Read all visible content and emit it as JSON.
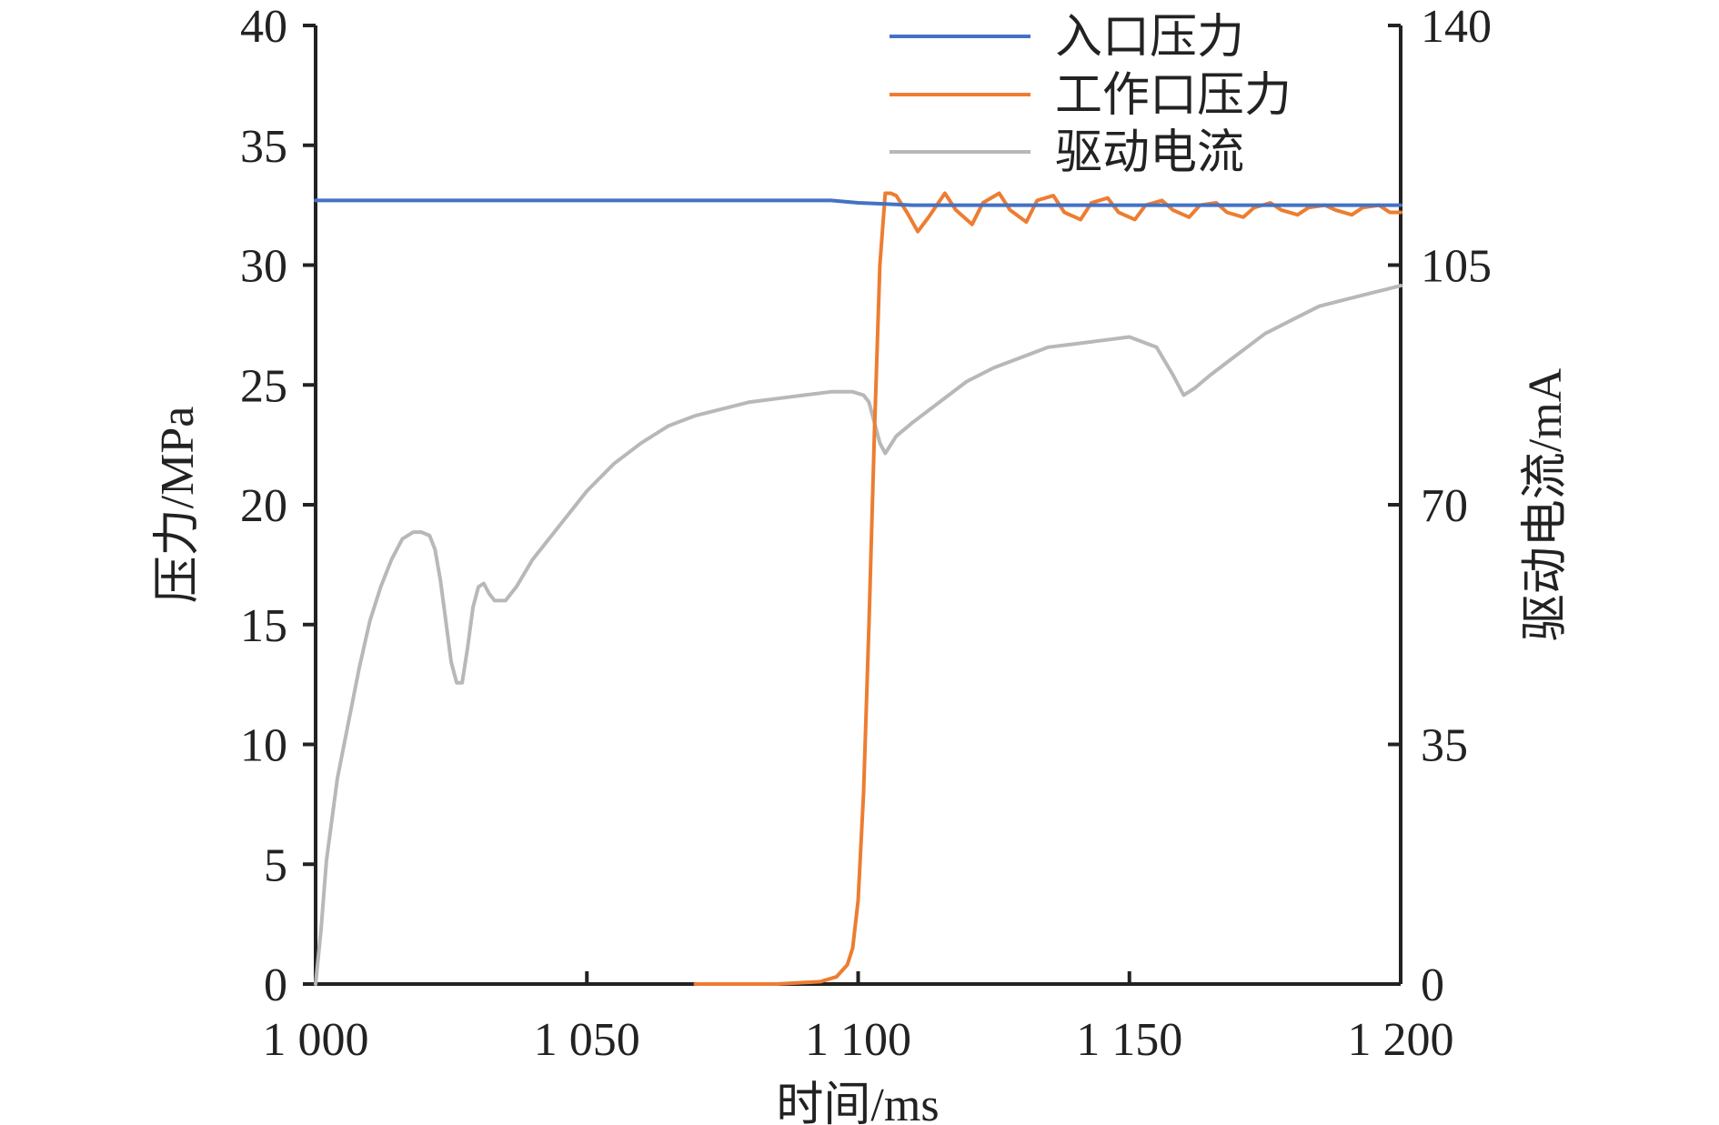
{
  "chart_data": {
    "type": "line",
    "x_axis": {
      "title": "时间/ms",
      "range": [
        1000,
        1200
      ],
      "ticks": [
        1000,
        1050,
        1100,
        1150,
        1200
      ],
      "tick_labels": [
        "1 000",
        "1 050",
        "1 100",
        "1 150",
        "1 200"
      ]
    },
    "y_axis_left": {
      "title": "压力/MPa",
      "range": [
        0,
        40
      ],
      "ticks": [
        0,
        5,
        10,
        15,
        20,
        25,
        30,
        35,
        40
      ],
      "tick_labels": [
        "0",
        "5",
        "10",
        "15",
        "20",
        "25",
        "30",
        "35",
        "40"
      ]
    },
    "y_axis_right": {
      "title": "驱动电流/mA",
      "range": [
        0,
        140
      ],
      "ticks": [
        0,
        35,
        70,
        105,
        140
      ],
      "tick_labels": [
        "0",
        "35",
        "70",
        "105",
        "140"
      ]
    },
    "grid": false,
    "legend_position": "top-right",
    "series": [
      {
        "name": "入口压力",
        "axis": "left",
        "color": "#4472c4",
        "x": [
          1000,
          1020,
          1040,
          1060,
          1080,
          1095,
          1100,
          1105,
          1110,
          1130,
          1150,
          1170,
          1190,
          1200
        ],
        "y": [
          32.7,
          32.7,
          32.7,
          32.7,
          32.7,
          32.7,
          32.6,
          32.55,
          32.5,
          32.5,
          32.5,
          32.5,
          32.5,
          32.5
        ]
      },
      {
        "name": "工作口压力",
        "axis": "left",
        "color": "#ed7d31",
        "x": [
          1070,
          1085,
          1093,
          1096,
          1098,
          1099,
          1100,
          1101,
          1102,
          1103,
          1104,
          1105,
          1106,
          1107,
          1109,
          1111,
          1113,
          1116,
          1118,
          1121,
          1123,
          1126,
          1128,
          1131,
          1133,
          1136,
          1138,
          1141,
          1143,
          1146,
          1148,
          1151,
          1153,
          1156,
          1158,
          1161,
          1163,
          1166,
          1168,
          1171,
          1173,
          1176,
          1178,
          1181,
          1183,
          1186,
          1188,
          1191,
          1193,
          1196,
          1198,
          1200
        ],
        "y": [
          0,
          0,
          0.1,
          0.3,
          0.8,
          1.5,
          3.5,
          8,
          15,
          23,
          30,
          33,
          33,
          32.9,
          32.2,
          31.4,
          32,
          33,
          32.3,
          31.7,
          32.6,
          33,
          32.3,
          31.8,
          32.7,
          32.9,
          32.2,
          31.9,
          32.6,
          32.8,
          32.2,
          31.9,
          32.5,
          32.7,
          32.3,
          32,
          32.5,
          32.6,
          32.2,
          32,
          32.4,
          32.6,
          32.3,
          32.1,
          32.4,
          32.5,
          32.3,
          32.1,
          32.4,
          32.5,
          32.2,
          32.2
        ]
      },
      {
        "name": "驱动电流",
        "axis": "right",
        "color": "#b8b8b8",
        "x": [
          1000,
          1001,
          1002,
          1004,
          1006,
          1008,
          1010,
          1012,
          1014,
          1016,
          1018,
          1019.5,
          1021,
          1022,
          1023,
          1024,
          1025,
          1026,
          1027,
          1028,
          1029,
          1030,
          1031,
          1032,
          1033,
          1035,
          1037,
          1040,
          1045,
          1050,
          1055,
          1060,
          1065,
          1070,
          1075,
          1080,
          1085,
          1090,
          1095,
          1099,
          1101,
          1102,
          1103,
          1104,
          1105,
          1107,
          1110,
          1115,
          1120,
          1125,
          1130,
          1135,
          1140,
          1145,
          1150,
          1155,
          1158,
          1160,
          1162,
          1165,
          1170,
          1175,
          1180,
          1185,
          1190,
          1195,
          1200
        ],
        "y": [
          0,
          8,
          18,
          30,
          38,
          46,
          53,
          58,
          62,
          65,
          66,
          66,
          65.5,
          63.5,
          59,
          53,
          47,
          44,
          44,
          49,
          55,
          58,
          58.5,
          57,
          56,
          56,
          58,
          62,
          67,
          72,
          76,
          79,
          81.5,
          83,
          84,
          85,
          85.5,
          86,
          86.5,
          86.5,
          86,
          85,
          82,
          79,
          77.5,
          80,
          82,
          85,
          88,
          90,
          91.5,
          93,
          93.5,
          94,
          94.5,
          93,
          89,
          86,
          87,
          89,
          92,
          95,
          97,
          99,
          100,
          101,
          102
        ]
      }
    ]
  }
}
